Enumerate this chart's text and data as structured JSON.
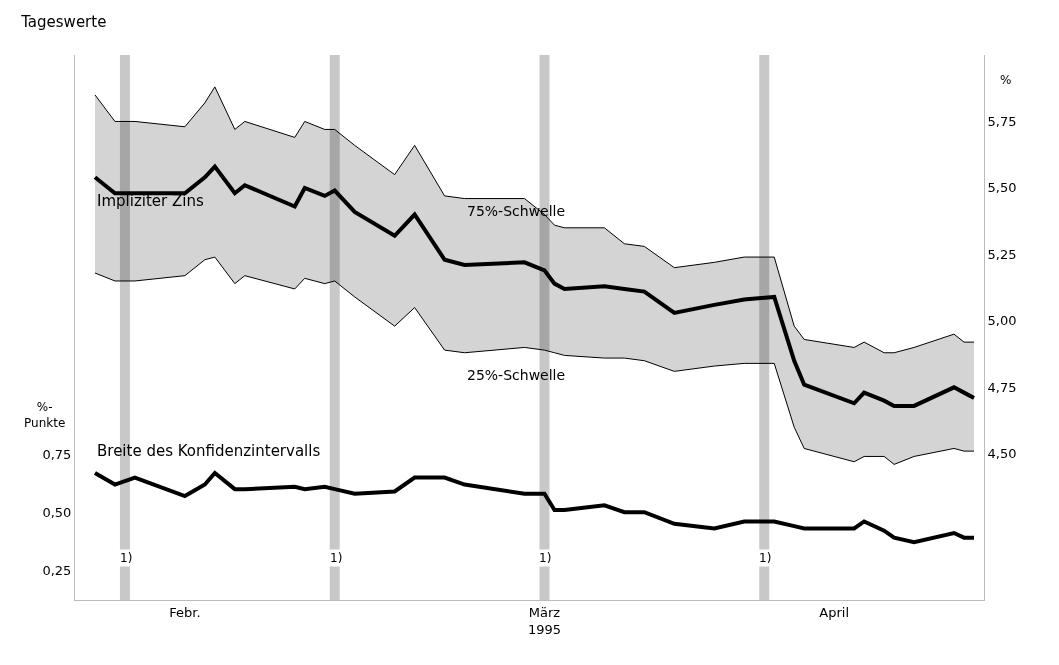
{
  "chart_data": {
    "type": "line",
    "title": "Tageswerte",
    "ylabel": "%-\nPunkte",
    "y2label": "%",
    "x": [
      "1995-02-01",
      "1995-02-03",
      "1995-02-05",
      "1995-02-10",
      "1995-02-12",
      "1995-02-13",
      "1995-02-15",
      "1995-02-16",
      "1995-02-21",
      "1995-02-22",
      "1995-02-24",
      "1995-02-25",
      "1995-02-27",
      "1995-03-03",
      "1995-03-05",
      "1995-03-08",
      "1995-03-10",
      "1995-03-16",
      "1995-03-18",
      "1995-03-19",
      "1995-03-20",
      "1995-03-24",
      "1995-03-26",
      "1995-03-28",
      "1995-03-31",
      "1995-04-04",
      "1995-04-07",
      "1995-04-10",
      "1995-04-12",
      "1995-04-13",
      "1995-04-18",
      "1995-04-19",
      "1995-04-21",
      "1995-04-22",
      "1995-04-24",
      "1995-04-28",
      "1995-04-29",
      "1995-04-30"
    ],
    "series": [
      {
        "name": "Impliziter Zins",
        "color": "#000000",
        "axis": "y2",
        "values": [
          5.54,
          5.48,
          5.48,
          5.48,
          5.54,
          5.58,
          5.48,
          5.51,
          5.43,
          5.5,
          5.47,
          5.49,
          5.41,
          5.32,
          5.4,
          5.23,
          5.21,
          5.22,
          5.19,
          5.14,
          5.12,
          5.13,
          5.12,
          5.11,
          5.03,
          5.06,
          5.08,
          5.09,
          4.85,
          4.76,
          4.69,
          4.73,
          4.7,
          4.68,
          4.68,
          4.75,
          4.73,
          4.71
        ],
        "upper": [
          5.85,
          5.75,
          5.75,
          5.73,
          5.82,
          5.88,
          5.72,
          5.75,
          5.69,
          5.75,
          5.72,
          5.72,
          5.66,
          5.55,
          5.66,
          5.47,
          5.46,
          5.46,
          5.4,
          5.36,
          5.35,
          5.35,
          5.29,
          5.28,
          5.2,
          5.22,
          5.24,
          5.24,
          4.98,
          4.93,
          4.9,
          4.92,
          4.88,
          4.88,
          4.9,
          4.95,
          4.92,
          4.92
        ],
        "lower": [
          5.18,
          5.15,
          5.15,
          5.17,
          5.23,
          5.24,
          5.14,
          5.17,
          5.12,
          5.16,
          5.14,
          5.15,
          5.09,
          4.98,
          5.05,
          4.89,
          4.88,
          4.9,
          4.89,
          4.88,
          4.87,
          4.86,
          4.86,
          4.85,
          4.81,
          4.83,
          4.84,
          4.84,
          4.6,
          4.52,
          4.47,
          4.49,
          4.49,
          4.46,
          4.49,
          4.52,
          4.51,
          4.51
        ]
      },
      {
        "name": "Breite des Konfidenzintervalls",
        "color": "#000000",
        "axis": "y",
        "values": [
          0.67,
          0.62,
          0.65,
          0.57,
          0.62,
          0.67,
          0.6,
          0.6,
          0.61,
          0.6,
          0.61,
          0.6,
          0.58,
          0.59,
          0.65,
          0.65,
          0.62,
          0.58,
          0.58,
          0.51,
          0.51,
          0.53,
          0.5,
          0.5,
          0.45,
          0.43,
          0.46,
          0.46,
          0.44,
          0.43,
          0.43,
          0.46,
          0.42,
          0.39,
          0.37,
          0.41,
          0.39,
          0.39
        ]
      },
      {
        "name": "75%-Schwelle",
        "color": "#000000",
        "axis": "y2",
        "values": [
          5.85,
          5.75,
          5.75,
          5.73,
          5.82,
          5.88,
          5.72,
          5.75,
          5.69,
          5.75,
          5.72,
          5.72,
          5.66,
          5.55,
          5.66,
          5.47,
          5.46,
          5.46,
          5.4,
          5.36,
          5.35,
          5.35,
          5.29,
          5.28,
          5.2,
          5.22,
          5.24,
          5.24,
          4.98,
          4.93,
          4.9,
          4.92,
          4.88,
          4.88,
          4.9,
          4.95,
          4.92,
          4.92
        ]
      },
      {
        "name": "25%-Schwelle",
        "color": "#000000",
        "axis": "y2",
        "values": [
          5.18,
          5.15,
          5.15,
          5.17,
          5.23,
          5.24,
          5.14,
          5.17,
          5.12,
          5.16,
          5.14,
          5.15,
          5.09,
          4.98,
          5.05,
          4.89,
          4.88,
          4.9,
          4.89,
          4.88,
          4.87,
          4.86,
          4.86,
          4.85,
          4.81,
          4.83,
          4.84,
          4.84,
          4.6,
          4.52,
          4.47,
          4.49,
          4.49,
          4.46,
          4.49,
          4.52,
          4.51,
          4.51
        ]
      }
    ],
    "xlim": [
      "1995-01-30",
      "1995-05-01"
    ],
    "xticks": [
      {
        "value": "1995-02-10",
        "label": "Febr."
      },
      {
        "value": "1995-03-18",
        "label": "März\n1995"
      },
      {
        "value": "1995-04-16",
        "label": "April"
      }
    ],
    "ylim": [
      0.12,
      2.48
    ],
    "yticks": [
      {
        "value": 0.25,
        "label": "0,25"
      },
      {
        "value": 0.5,
        "label": "0,50"
      },
      {
        "value": 0.75,
        "label": "0,75"
      }
    ],
    "y2lim": [
      3.95,
      6.0
    ],
    "y2ticks": [
      {
        "value": 4.5,
        "label": "4,50"
      },
      {
        "value": 4.75,
        "label": "4,75"
      },
      {
        "value": 5.0,
        "label": "5,00"
      },
      {
        "value": 5.25,
        "label": "5,25"
      },
      {
        "value": 5.5,
        "label": "5,50"
      },
      {
        "value": 5.75,
        "label": "5,75"
      }
    ],
    "bands": [
      {
        "axis": "x",
        "from": "1995-02-03T12:00",
        "to": "1995-02-04T12:00",
        "label": "1)",
        "color": "#c8c8c8"
      },
      {
        "axis": "x",
        "from": "1995-02-24T12:00",
        "to": "1995-02-25T12:00",
        "label": "1)",
        "color": "#c8c8c8"
      },
      {
        "axis": "x",
        "from": "1995-03-17T12:00",
        "to": "1995-03-18T12:00",
        "label": "1)",
        "color": "#c8c8c8"
      },
      {
        "axis": "x",
        "from": "1995-04-08T12:00",
        "to": "1995-04-09T12:00",
        "label": "1)",
        "color": "#c8c8c8"
      }
    ],
    "grid": false,
    "legend": false,
    "marker": "none",
    "line_style": "solid"
  }
}
